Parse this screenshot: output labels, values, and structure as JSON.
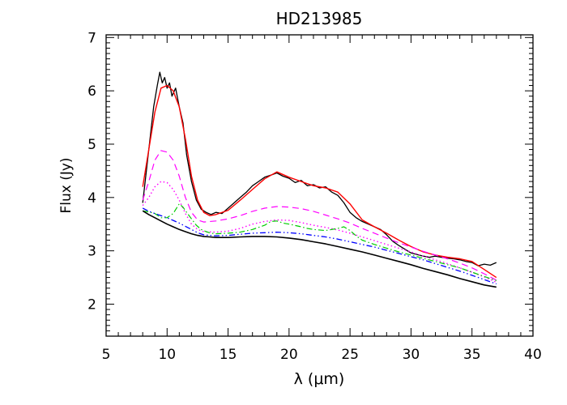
{
  "chart_data": {
    "type": "line",
    "title": "HD213985",
    "xlabel": "λ (μm)",
    "ylabel": "Flux (Jy)",
    "xlim": [
      5,
      40
    ],
    "ylim": [
      1.4,
      7.05
    ],
    "xticks": [
      5,
      10,
      15,
      20,
      25,
      30,
      35,
      40
    ],
    "yticks": [
      2,
      3,
      4,
      5,
      6,
      7
    ],
    "grid": false,
    "legend": "none",
    "series": [
      {
        "color": "#000000",
        "dash": "",
        "width": 1.3,
        "x": [
          8.0,
          8.3,
          8.6,
          8.9,
          9.2,
          9.4,
          9.6,
          9.8,
          10.0,
          10.2,
          10.4,
          10.7,
          11.0,
          11.3,
          11.6,
          12.0,
          12.4,
          12.8,
          13.2,
          13.6,
          14.0,
          14.5,
          15.0,
          15.5,
          16.0,
          16.5,
          17.0,
          17.5,
          18.0,
          18.5,
          19.0,
          19.5,
          20.0,
          20.5,
          21.0,
          21.5,
          22.0,
          22.5,
          23.0,
          23.5,
          24.0,
          24.5,
          25.0,
          25.5,
          26.0,
          26.5,
          27.0,
          27.5,
          28.0,
          28.5,
          29.0,
          29.5,
          30.0,
          30.5,
          31.0,
          31.5,
          32.0,
          32.5,
          33.0,
          33.5,
          34.0,
          34.5,
          35.0,
          35.5,
          36.0,
          36.5,
          37.0
        ],
        "y": [
          3.9,
          4.5,
          5.1,
          5.7,
          6.1,
          6.35,
          6.15,
          6.25,
          6.05,
          6.15,
          5.9,
          6.05,
          5.7,
          5.4,
          4.8,
          4.3,
          3.95,
          3.78,
          3.72,
          3.68,
          3.72,
          3.7,
          3.8,
          3.9,
          4.0,
          4.1,
          4.22,
          4.3,
          4.38,
          4.42,
          4.46,
          4.4,
          4.36,
          4.28,
          4.32,
          4.22,
          4.24,
          4.18,
          4.2,
          4.1,
          4.04,
          3.9,
          3.72,
          3.62,
          3.55,
          3.5,
          3.45,
          3.4,
          3.3,
          3.18,
          3.1,
          3.03,
          2.96,
          2.93,
          2.9,
          2.88,
          2.9,
          2.88,
          2.86,
          2.85,
          2.83,
          2.8,
          2.78,
          2.72,
          2.75,
          2.73,
          2.78
        ]
      },
      {
        "color": "#ff0000",
        "dash": "",
        "width": 1.4,
        "x": [
          8.0,
          8.5,
          9.0,
          9.5,
          10.0,
          10.5,
          11.0,
          11.5,
          12.0,
          12.5,
          13.0,
          13.5,
          14.0,
          15.0,
          16.0,
          17.0,
          18.0,
          19.0,
          20.0,
          21.0,
          22.0,
          23.0,
          24.0,
          25.0,
          26.0,
          27.0,
          28.0,
          29.0,
          30.0,
          31.0,
          32.0,
          33.0,
          34.0,
          35.0,
          36.0,
          37.0
        ],
        "y": [
          4.2,
          4.9,
          5.6,
          6.05,
          6.1,
          6.0,
          5.7,
          5.1,
          4.4,
          3.95,
          3.72,
          3.66,
          3.68,
          3.76,
          3.95,
          4.15,
          4.35,
          4.48,
          4.38,
          4.3,
          4.22,
          4.18,
          4.1,
          3.88,
          3.58,
          3.45,
          3.33,
          3.2,
          3.08,
          2.98,
          2.92,
          2.88,
          2.85,
          2.8,
          2.65,
          2.5
        ]
      },
      {
        "color": "#ff00ff",
        "dash": "8,5",
        "width": 1.2,
        "x": [
          8.0,
          8.5,
          9.0,
          9.5,
          10.0,
          10.5,
          11.0,
          11.5,
          12.0,
          12.5,
          13.0,
          14.0,
          15.0,
          16.0,
          17.0,
          18.0,
          19.0,
          20.0,
          21.0,
          22.0,
          23.0,
          24.0,
          25.0,
          26.0,
          27.0,
          28.0,
          29.0,
          30.0,
          31.0,
          32.0,
          33.0,
          34.0,
          35.0,
          36.0,
          37.0
        ],
        "y": [
          3.95,
          4.3,
          4.7,
          4.88,
          4.85,
          4.7,
          4.4,
          4.0,
          3.72,
          3.58,
          3.54,
          3.56,
          3.6,
          3.66,
          3.74,
          3.8,
          3.83,
          3.82,
          3.79,
          3.74,
          3.67,
          3.6,
          3.52,
          3.42,
          3.33,
          3.24,
          3.15,
          3.07,
          2.99,
          2.92,
          2.85,
          2.77,
          2.68,
          2.57,
          2.45
        ]
      },
      {
        "color": "#ff00ff",
        "dash": "1.5,3",
        "width": 1.4,
        "x": [
          8.0,
          8.5,
          9.0,
          9.5,
          10.0,
          10.5,
          11.0,
          11.5,
          12.0,
          12.5,
          13.0,
          14.0,
          15.0,
          16.0,
          17.0,
          18.0,
          19.0,
          20.0,
          21.0,
          22.0,
          23.0,
          24.0,
          25.0,
          26.0,
          27.0,
          28.0,
          29.0,
          30.0,
          31.0,
          32.0,
          33.0,
          34.0,
          35.0,
          36.0,
          37.0
        ],
        "y": [
          3.85,
          4.0,
          4.2,
          4.3,
          4.28,
          4.15,
          3.95,
          3.7,
          3.5,
          3.4,
          3.36,
          3.35,
          3.37,
          3.42,
          3.5,
          3.55,
          3.58,
          3.57,
          3.53,
          3.48,
          3.44,
          3.39,
          3.33,
          3.26,
          3.19,
          3.12,
          3.05,
          2.98,
          2.9,
          2.83,
          2.76,
          2.68,
          2.6,
          2.51,
          2.41
        ]
      },
      {
        "color": "#00cc00",
        "dash": "7,3,1.5,3",
        "width": 1.2,
        "x": [
          8.0,
          8.5,
          9.0,
          9.5,
          10.0,
          10.5,
          11.0,
          11.3,
          11.6,
          12.0,
          12.4,
          12.8,
          13.2,
          13.6,
          14.0,
          15.0,
          16.0,
          17.0,
          18.0,
          18.5,
          19.0,
          19.5,
          20.0,
          21.0,
          21.5,
          22.0,
          23.0,
          24.0,
          24.5,
          25.0,
          25.5,
          26.0,
          27.0,
          28.0,
          29.0,
          30.0,
          31.0,
          32.0,
          33.0,
          34.0,
          35.0,
          36.0,
          37.0
        ],
        "y": [
          3.75,
          3.73,
          3.7,
          3.62,
          3.62,
          3.7,
          3.88,
          3.82,
          3.72,
          3.6,
          3.48,
          3.4,
          3.36,
          3.33,
          3.32,
          3.33,
          3.35,
          3.4,
          3.48,
          3.55,
          3.56,
          3.52,
          3.5,
          3.45,
          3.42,
          3.4,
          3.38,
          3.42,
          3.45,
          3.38,
          3.28,
          3.2,
          3.12,
          3.05,
          2.98,
          2.92,
          2.86,
          2.8,
          2.74,
          2.68,
          2.6,
          2.52,
          2.44
        ]
      },
      {
        "color": "#0000ff",
        "dash": "7,3,1.5,3,1.5,3",
        "width": 1.3,
        "x": [
          8.0,
          8.5,
          9.0,
          9.5,
          10.0,
          10.5,
          11.0,
          11.5,
          12.0,
          12.5,
          13.0,
          14.0,
          15.0,
          16.0,
          17.0,
          18.0,
          19.0,
          20.0,
          21.0,
          22.0,
          23.0,
          24.0,
          25.0,
          26.0,
          27.0,
          28.0,
          29.0,
          30.0,
          31.0,
          32.0,
          33.0,
          34.0,
          35.0,
          36.0,
          37.0
        ],
        "y": [
          3.8,
          3.74,
          3.7,
          3.66,
          3.62,
          3.57,
          3.52,
          3.46,
          3.4,
          3.34,
          3.3,
          3.28,
          3.29,
          3.31,
          3.33,
          3.34,
          3.35,
          3.34,
          3.32,
          3.29,
          3.26,
          3.22,
          3.17,
          3.12,
          3.07,
          3.01,
          2.95,
          2.89,
          2.83,
          2.76,
          2.69,
          2.62,
          2.54,
          2.46,
          2.38
        ]
      },
      {
        "color": "#000000",
        "dash": "",
        "width": 1.6,
        "x": [
          8.0,
          8.5,
          9.0,
          9.5,
          10.0,
          10.5,
          11.0,
          11.5,
          12.0,
          12.5,
          13.0,
          13.5,
          14.0,
          15.0,
          16.0,
          17.0,
          18.0,
          19.0,
          20.0,
          21.0,
          22.0,
          23.0,
          24.0,
          25.0,
          26.0,
          27.0,
          28.0,
          29.0,
          30.0,
          31.0,
          32.0,
          33.0,
          34.0,
          35.0,
          36.0,
          37.0
        ],
        "y": [
          3.75,
          3.68,
          3.62,
          3.56,
          3.5,
          3.45,
          3.4,
          3.36,
          3.32,
          3.29,
          3.27,
          3.26,
          3.25,
          3.25,
          3.26,
          3.27,
          3.27,
          3.26,
          3.24,
          3.21,
          3.17,
          3.13,
          3.08,
          3.03,
          2.98,
          2.92,
          2.86,
          2.8,
          2.74,
          2.67,
          2.61,
          2.55,
          2.48,
          2.42,
          2.36,
          2.32
        ]
      }
    ]
  }
}
